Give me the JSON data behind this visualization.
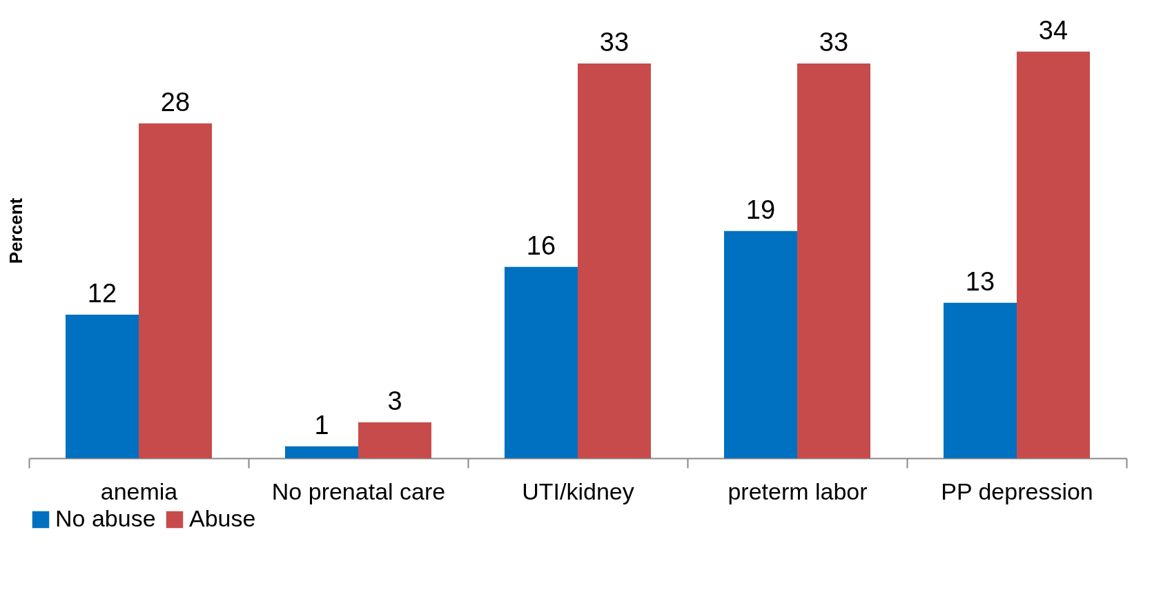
{
  "chart_data": {
    "type": "bar",
    "ylabel": "Percent",
    "categories": [
      "anemia",
      "No prenatal care",
      "UTI/kidney",
      "preterm labor",
      "PP depression"
    ],
    "series": [
      {
        "name": "No abuse",
        "color": "#0070c0",
        "values": [
          12,
          1,
          16,
          19,
          13
        ]
      },
      {
        "name": "Abuse",
        "color": "#c84b4b",
        "values": [
          28,
          3,
          33,
          33,
          34
        ]
      }
    ],
    "data_labels": true,
    "legend": "bottom",
    "grid": false
  }
}
